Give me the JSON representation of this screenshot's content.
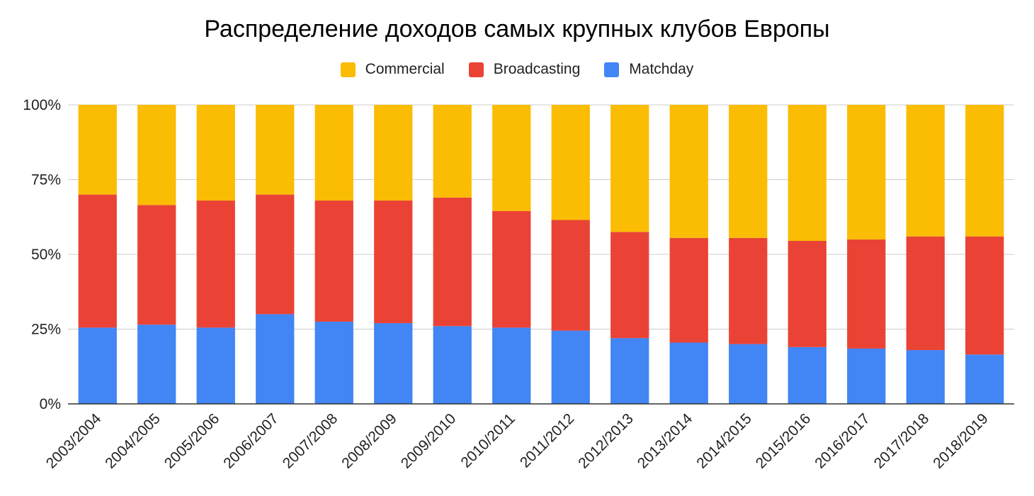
{
  "chart_data": {
    "type": "bar",
    "stacked": "percent",
    "title": "Распределение доходов самых крупных клубов Европы",
    "xlabel": "",
    "ylabel": "",
    "ylim": [
      0,
      100
    ],
    "yticks": [
      "0%",
      "25%",
      "50%",
      "75%",
      "100%"
    ],
    "grid": true,
    "legend_position": "top-center",
    "categories": [
      "2003/2004",
      "2004/2005",
      "2005/2006",
      "2006/2007",
      "2007/2008",
      "2008/2009",
      "2009/2010",
      "2010/2011",
      "2011/2012",
      "2012/2013",
      "2013/2014",
      "2014/2015",
      "2015/2016",
      "2016/2017",
      "2017/2018",
      "2018/2019"
    ],
    "series": [
      {
        "name": "Matchday",
        "color": "#4285F4",
        "values": [
          25.5,
          26.5,
          25.5,
          30.0,
          27.5,
          27.0,
          26.0,
          25.5,
          24.5,
          22.0,
          20.5,
          20.0,
          19.0,
          18.5,
          18.0,
          16.5
        ]
      },
      {
        "name": "Broadcasting",
        "color": "#EA4335",
        "values": [
          44.5,
          40.0,
          42.5,
          40.0,
          40.5,
          41.0,
          43.0,
          39.0,
          37.0,
          35.5,
          35.0,
          35.5,
          35.5,
          36.5,
          38.0,
          39.5
        ]
      },
      {
        "name": "Commercial",
        "color": "#FBBC04",
        "values": [
          30.0,
          33.5,
          32.0,
          30.0,
          32.0,
          32.0,
          31.0,
          35.5,
          38.5,
          42.5,
          44.5,
          44.5,
          45.5,
          45.0,
          44.0,
          44.0
        ]
      }
    ],
    "legend_order": [
      "Commercial",
      "Broadcasting",
      "Matchday"
    ]
  }
}
